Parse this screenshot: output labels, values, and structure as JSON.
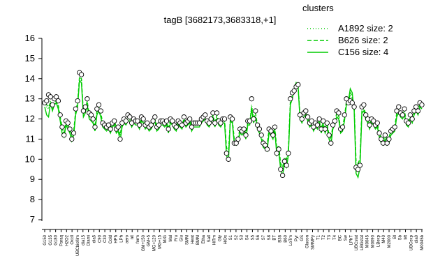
{
  "chart_data": {
    "type": "line",
    "title": "tagB [3682173,3683318,+1]",
    "xlabel": "",
    "ylabel": "",
    "ylim": [
      7,
      16
    ],
    "yticks": [
      7,
      8,
      9,
      10,
      11,
      12,
      13,
      14,
      15,
      16
    ],
    "grid": false,
    "legend": {
      "position": "top-right",
      "title": "clusters",
      "entries": [
        {
          "label": "A1892 size: 2",
          "style": "dotted",
          "color": "#00cc00"
        },
        {
          "label": "B626 size: 2",
          "style": "dashed",
          "color": "#00cc00"
        },
        {
          "label": "C156 size: 4",
          "style": "solid",
          "color": "#00cc00"
        }
      ]
    },
    "x_tick_labels": [
      "G150",
      "G135",
      "G180",
      "Paraq",
      "H2O2",
      "Oxctl",
      "UBCbiofilm",
      "dia15",
      "Diami",
      "dia5",
      "C90",
      "C30",
      "Cold",
      "HPh",
      "LPh",
      "aero",
      "nit",
      "ferm",
      "GM+150",
      "GM+5",
      "MG+120",
      "MG+15",
      "M/G",
      "Mal",
      "Fru",
      "Glu",
      "SMM",
      "Heat",
      "BMM",
      "Etha",
      "Salt",
      "HiTm",
      "Gly",
      "HiOs",
      "S1",
      "S2",
      "S3",
      "S4",
      "S5",
      "S6",
      "S7",
      "S8",
      "BT",
      "B36",
      "B60",
      "LoTm",
      "Pyr",
      "GS",
      "Glucon",
      "SMMPy",
      "T1",
      "T2",
      "T3",
      "T4",
      "BC",
      "Sw",
      "LPhT",
      "UBCstat",
      "LBGstat",
      "M0045",
      "M0090",
      "LBexp",
      "M40",
      "M2000",
      "BI",
      "Sb",
      "Mt",
      "UBCexp",
      "dia0",
      "M0045b"
    ],
    "points_y": [
      12.8,
      12.9,
      13.2,
      13.1,
      12.7,
      13.0,
      13.1,
      12.9,
      12.2,
      11.6,
      11.2,
      11.9,
      11.8,
      11.5,
      11.0,
      11.3,
      12.5,
      12.9,
      14.3,
      14.2,
      12.4,
      12.6,
      13.0,
      12.3,
      12.2,
      12.0,
      11.6,
      12.5,
      12.7,
      12.4,
      11.8,
      11.7,
      11.6,
      11.7,
      11.5,
      11.8,
      11.9,
      11.5,
      11.6,
      11.0,
      11.8,
      12.0,
      11.9,
      12.2,
      12.1,
      11.8,
      12.0,
      11.9,
      11.9,
      11.7,
      12.1,
      12.0,
      11.7,
      11.8,
      11.6,
      11.7,
      11.9,
      12.1,
      11.6,
      11.7,
      11.9,
      11.9,
      11.8,
      11.9,
      11.5,
      12.0,
      11.9,
      11.7,
      11.6,
      11.9,
      11.8,
      11.7,
      12.1,
      11.8,
      11.9,
      12.0,
      11.6,
      11.8,
      11.8,
      11.8,
      11.8,
      12.0,
      12.1,
      12.2,
      11.9,
      11.8,
      12.0,
      12.3,
      11.8,
      12.3,
      11.9,
      11.8,
      12.0,
      12.0,
      10.3,
      10.0,
      12.1,
      12.0,
      10.8,
      10.8,
      11.0,
      11.5,
      11.4,
      11.5,
      11.2,
      11.9,
      11.9,
      13.0,
      12.0,
      12.4,
      11.7,
      11.5,
      11.2,
      10.8,
      10.7,
      10.5,
      11.5,
      11.4,
      11.2,
      11.6,
      10.3,
      10.5,
      9.5,
      9.2,
      9.9,
      9.7,
      10.3,
      13.0,
      13.3,
      13.4,
      13.6,
      13.7,
      12.2,
      12.0,
      12.3,
      12.4,
      12.1,
      11.8,
      11.9,
      11.6,
      11.8,
      11.7,
      12.0,
      11.5,
      11.9,
      11.5,
      11.8,
      11.2,
      10.8,
      11.7,
      11.9,
      12.4,
      12.3,
      11.5,
      11.6,
      12.2,
      13.0,
      12.8,
      12.9,
      12.8,
      12.6,
      9.6,
      9.5,
      9.7,
      12.6,
      12.7,
      12.2,
      12.0,
      11.7,
      12.0,
      11.9,
      11.7,
      11.8,
      11.3,
      11.0,
      10.8,
      11.2,
      10.8,
      11.0,
      11.4,
      11.5,
      11.6,
      12.4,
      12.6,
      12.3,
      12.2,
      12.5,
      11.9,
      11.8,
      12.2,
      12.0,
      12.4,
      12.6,
      12.4,
      12.8,
      12.7
    ],
    "line_A1892": [
      12.8,
      12.6,
      12.5,
      12.9,
      12.5,
      12.8,
      12.9,
      12.6,
      12.0,
      11.5,
      11.2,
      11.8,
      11.6,
      11.4,
      11.1,
      11.3,
      12.3,
      12.7,
      14.0,
      13.9,
      12.3,
      12.4,
      12.8,
      12.1,
      12.0,
      11.9,
      11.5,
      12.3,
      12.5,
      12.2,
      11.7,
      11.6,
      11.5,
      11.6,
      11.5,
      11.7,
      11.8,
      11.5,
      11.5,
      11.1,
      11.7,
      11.9,
      11.8,
      12.0,
      12.0,
      11.7,
      11.9,
      11.8,
      11.8,
      11.6,
      12.0,
      11.9,
      11.6,
      11.7,
      11.5,
      11.6,
      11.8,
      12.0,
      11.5,
      11.6,
      11.8,
      11.8,
      11.7,
      11.8,
      11.4,
      11.9,
      11.8,
      11.6,
      11.5,
      11.8,
      11.7,
      11.6,
      12.0,
      11.7,
      11.8,
      11.9,
      11.5,
      11.7,
      11.7,
      11.7,
      11.7,
      11.9,
      12.0,
      12.1,
      11.8,
      11.7,
      11.9,
      12.2,
      11.7,
      12.1,
      11.8,
      11.7,
      11.9,
      11.9,
      10.4,
      10.2,
      12.0,
      11.9,
      10.9,
      10.9,
      11.0,
      11.4,
      11.3,
      11.4,
      11.2,
      11.8,
      11.8,
      12.7,
      11.9,
      12.2,
      11.6,
      11.4,
      11.1,
      10.8,
      10.7,
      10.6,
      11.4,
      11.3,
      11.1,
      11.5,
      10.4,
      10.6,
      9.7,
      9.4,
      10.0,
      9.9,
      10.4,
      12.8,
      13.1,
      13.3,
      13.5,
      13.6,
      12.1,
      11.9,
      12.2,
      12.3,
      12.0,
      11.7,
      11.8,
      11.5,
      11.7,
      11.6,
      11.9,
      11.4,
      11.8,
      11.4,
      11.7,
      11.1,
      10.9,
      11.6,
      11.8,
      12.2,
      12.1,
      11.4,
      11.5,
      12.0,
      12.8,
      12.7,
      13.2,
      13.0,
      12.5,
      9.8,
      9.7,
      9.9,
      12.4,
      12.5,
      12.1,
      11.9,
      11.6,
      11.9,
      11.8,
      11.6,
      11.7,
      11.2,
      11.0,
      10.9,
      11.1,
      10.9,
      11.0,
      11.3,
      11.4,
      11.5,
      12.2,
      12.4,
      12.2,
      12.1,
      12.3,
      11.8,
      11.7,
      12.1,
      11.9,
      12.3,
      12.5,
      12.3,
      12.7,
      12.6
    ],
    "line_B626": [
      12.7,
      12.7,
      12.6,
      12.8,
      12.6,
      12.7,
      12.8,
      12.7,
      12.1,
      11.6,
      11.3,
      11.9,
      11.7,
      11.5,
      11.2,
      11.4,
      12.4,
      12.8,
      14.1,
      14.0,
      12.3,
      12.5,
      12.9,
      12.2,
      12.1,
      12.0,
      11.6,
      12.4,
      12.6,
      12.3,
      11.8,
      11.7,
      11.6,
      11.7,
      11.6,
      11.8,
      11.9,
      11.6,
      11.6,
      11.2,
      11.8,
      12.0,
      11.9,
      12.1,
      12.0,
      11.8,
      12.0,
      11.9,
      11.9,
      11.7,
      12.0,
      12.0,
      11.7,
      11.8,
      11.6,
      11.7,
      11.9,
      12.0,
      11.6,
      11.7,
      11.9,
      11.9,
      11.8,
      11.9,
      11.5,
      12.0,
      11.9,
      11.7,
      11.6,
      11.9,
      11.8,
      11.7,
      12.0,
      11.8,
      11.9,
      12.0,
      11.6,
      11.8,
      11.8,
      11.8,
      11.8,
      12.0,
      12.0,
      12.1,
      11.9,
      11.8,
      12.0,
      12.2,
      11.8,
      12.2,
      11.9,
      11.8,
      12.0,
      12.0,
      10.6,
      10.3,
      12.0,
      12.0,
      11.0,
      11.0,
      11.1,
      11.5,
      11.4,
      11.5,
      11.3,
      11.8,
      11.8,
      12.6,
      12.0,
      12.3,
      11.7,
      11.5,
      11.2,
      10.9,
      10.8,
      10.7,
      11.5,
      11.4,
      11.2,
      11.6,
      10.5,
      10.7,
      9.8,
      9.6,
      10.1,
      10.0,
      10.5,
      12.9,
      13.2,
      13.4,
      13.6,
      13.7,
      12.2,
      12.0,
      12.3,
      12.3,
      12.1,
      11.8,
      11.9,
      11.6,
      11.8,
      11.7,
      12.0,
      11.5,
      11.9,
      11.5,
      11.8,
      11.2,
      11.0,
      11.7,
      11.9,
      12.3,
      12.2,
      11.5,
      11.6,
      12.1,
      12.9,
      12.8,
      13.3,
      13.1,
      12.6,
      9.9,
      9.8,
      10.0,
      12.5,
      12.6,
      12.2,
      12.0,
      11.7,
      12.0,
      11.9,
      11.7,
      11.8,
      11.3,
      11.1,
      11.0,
      11.2,
      11.0,
      11.1,
      11.4,
      11.5,
      11.6,
      12.3,
      12.5,
      12.3,
      12.2,
      12.4,
      11.9,
      11.8,
      12.2,
      12.0,
      12.4,
      12.6,
      12.4,
      12.8,
      12.7
    ],
    "line_C156": [
      12.6,
      12.2,
      12.1,
      12.8,
      12.4,
      12.7,
      12.8,
      12.5,
      11.9,
      11.3,
      11.1,
      11.7,
      11.5,
      11.3,
      10.9,
      11.2,
      12.2,
      12.6,
      13.9,
      13.8,
      12.1,
      12.3,
      12.7,
      12.0,
      11.9,
      11.8,
      11.4,
      12.2,
      12.4,
      12.1,
      11.6,
      11.5,
      11.4,
      11.5,
      11.3,
      11.6,
      11.7,
      11.3,
      11.4,
      10.9,
      11.6,
      11.8,
      11.7,
      11.9,
      11.9,
      11.6,
      11.8,
      11.7,
      11.7,
      11.5,
      11.9,
      11.8,
      11.5,
      11.6,
      11.4,
      11.5,
      11.7,
      11.9,
      11.4,
      11.5,
      11.7,
      11.7,
      11.6,
      11.7,
      11.3,
      11.8,
      11.7,
      11.5,
      11.4,
      11.7,
      11.6,
      11.5,
      11.9,
      11.6,
      11.7,
      11.8,
      11.4,
      11.6,
      11.6,
      11.6,
      11.6,
      11.8,
      11.9,
      12.0,
      11.7,
      11.6,
      11.8,
      12.1,
      11.6,
      12.0,
      11.7,
      11.6,
      11.8,
      11.8,
      10.2,
      9.9,
      11.9,
      11.8,
      10.8,
      10.7,
      10.9,
      11.3,
      11.2,
      11.3,
      11.0,
      11.7,
      11.7,
      12.5,
      11.8,
      12.1,
      11.5,
      11.3,
      11.0,
      10.6,
      10.5,
      10.4,
      11.3,
      11.2,
      11.0,
      11.4,
      10.2,
      10.4,
      9.5,
      9.2,
      9.8,
      9.6,
      10.2,
      12.7,
      13.0,
      13.5,
      13.8,
      13.6,
      12.0,
      11.8,
      12.1,
      12.2,
      11.9,
      11.6,
      11.7,
      11.4,
      11.6,
      11.5,
      11.8,
      11.3,
      11.7,
      11.3,
      11.6,
      11.0,
      10.7,
      11.5,
      11.7,
      12.1,
      12.0,
      11.3,
      11.4,
      11.9,
      12.7,
      12.9,
      13.5,
      13.3,
      12.4,
      9.3,
      9.1,
      9.6,
      12.3,
      12.4,
      12.0,
      11.8,
      11.5,
      11.8,
      11.7,
      11.5,
      11.6,
      11.1,
      10.8,
      10.7,
      11.0,
      10.7,
      10.8,
      11.2,
      11.3,
      11.4,
      12.1,
      12.3,
      12.1,
      12.0,
      12.2,
      11.7,
      11.6,
      12.0,
      11.8,
      12.2,
      12.4,
      12.2,
      12.6,
      12.5
    ]
  }
}
